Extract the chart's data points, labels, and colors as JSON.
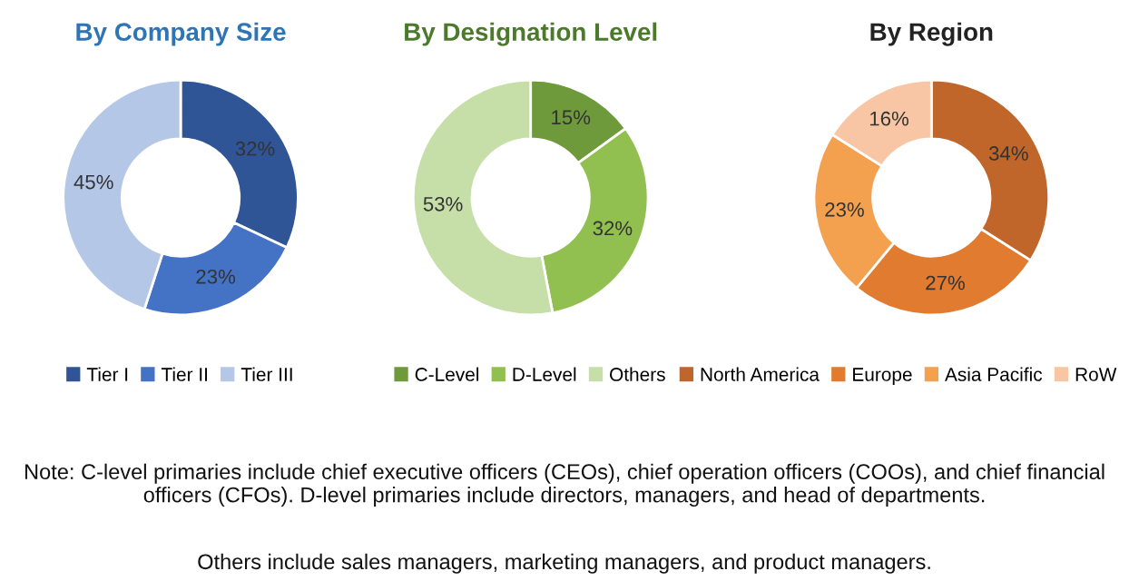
{
  "chart_data": [
    {
      "type": "donut",
      "title": "By Company Size",
      "categories": [
        "Tier I",
        "Tier II",
        "Tier III"
      ],
      "values": [
        32,
        23,
        45
      ],
      "value_labels": [
        "32%",
        "23%",
        "45%"
      ],
      "colors": [
        "#2f5597",
        "#4472c4",
        "#b4c7e7"
      ],
      "legend": "bottom",
      "annotations": [
        "Note: C-level primaries include chief executive officers (CEOs), chief operation officers (COOs), and chief financial officers (CFOs). D-level primaries include directors, managers, and head of departments.",
        "Others include sales managers, marketing managers, and product managers."
      ]
    },
    {
      "type": "donut",
      "title": "By Designation Level",
      "categories": [
        "C-Level",
        "D-Level",
        "Others"
      ],
      "values": [
        15,
        32,
        53
      ],
      "value_labels": [
        "15%",
        "32%",
        "53%"
      ],
      "colors": [
        "#6f9a3c",
        "#92c050",
        "#c6dfa8"
      ],
      "legend": "bottom"
    },
    {
      "type": "donut",
      "title": "By Region",
      "categories": [
        "North America",
        "Europe",
        "Asia Pacific",
        "RoW"
      ],
      "values": [
        34,
        27,
        23,
        16
      ],
      "value_labels": [
        "34%",
        "27%",
        "23%",
        "16%"
      ],
      "colors": [
        "#c0662a",
        "#e07b30",
        "#f3a04f",
        "#f8c6a4"
      ],
      "legend": "bottom"
    }
  ]
}
